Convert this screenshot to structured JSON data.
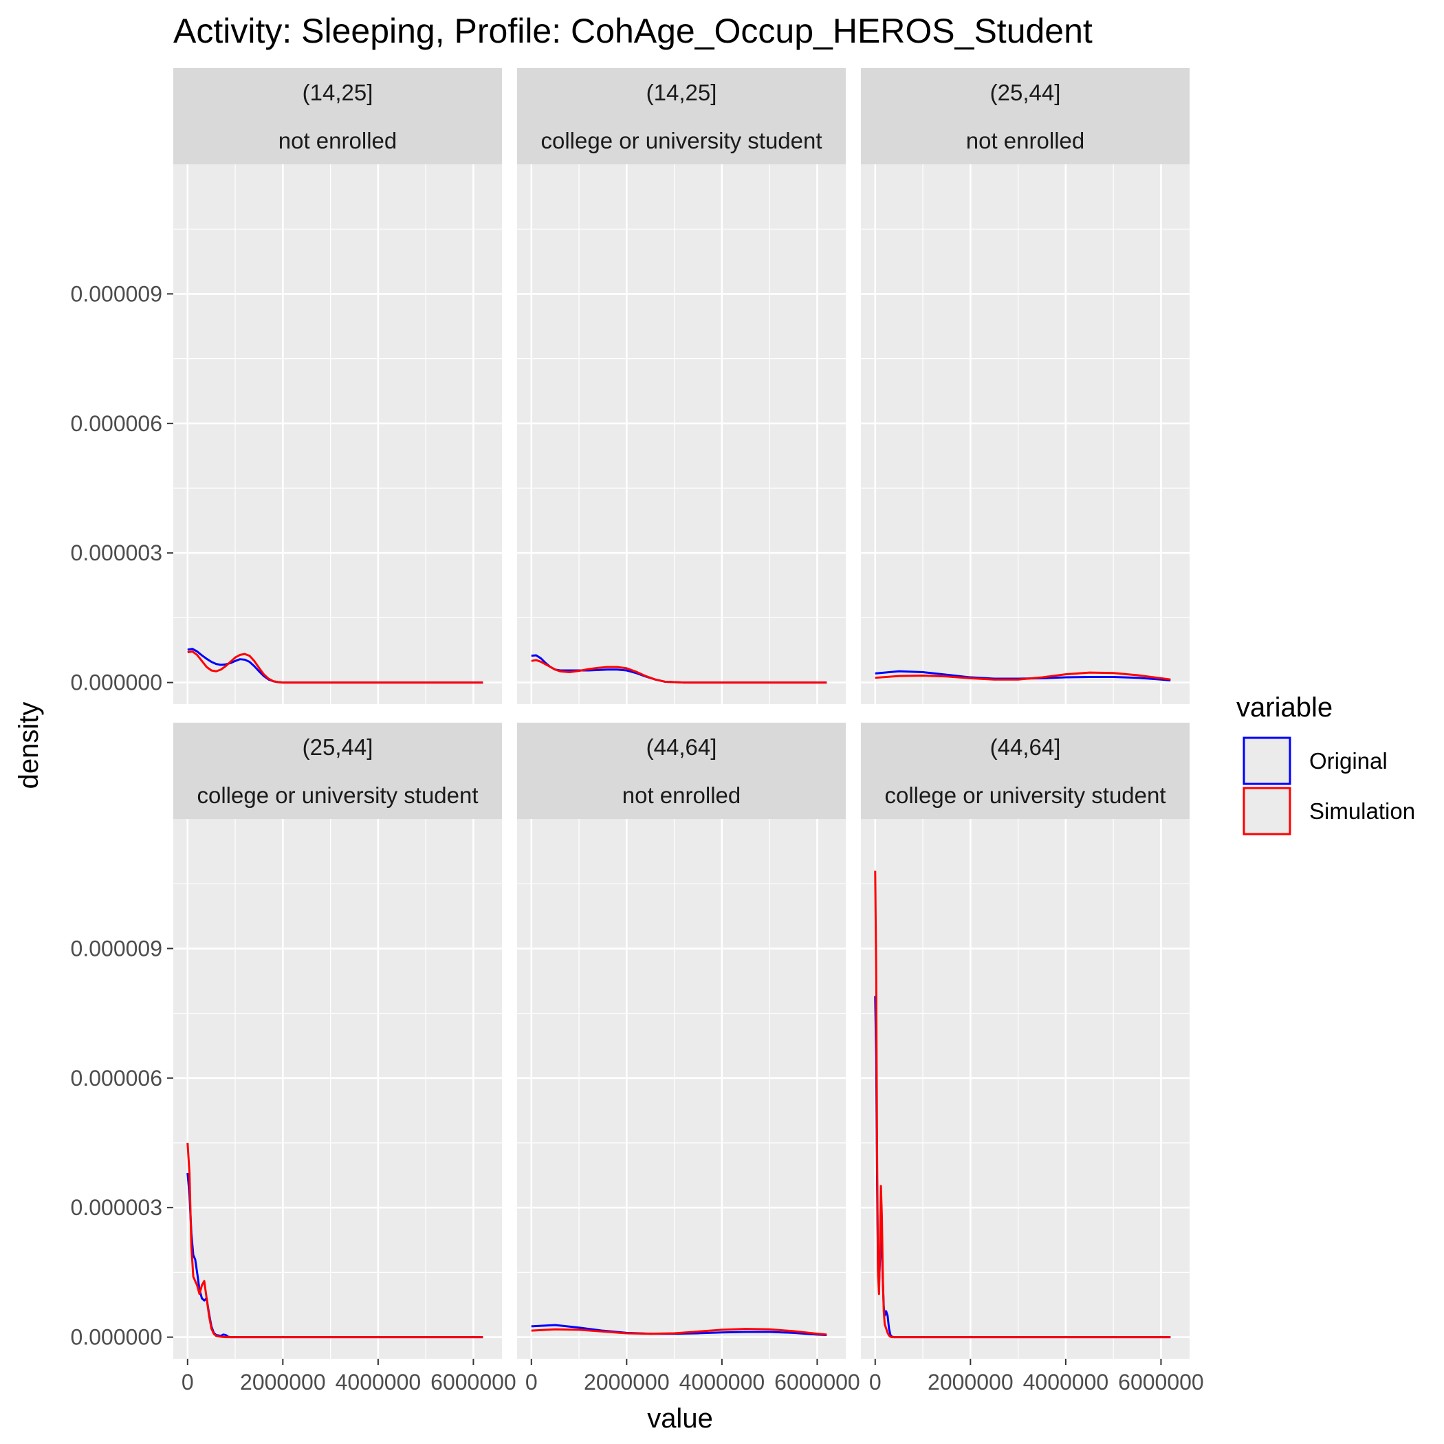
{
  "chart_data": {
    "type": "line",
    "title": "Activity: Sleeping, Profile: CohAge_Occup_HEROS_Student",
    "xlabel": "value",
    "ylabel": "density",
    "xlim": [
      -300000,
      6600000
    ],
    "ylim": [
      -5e-07,
      1.2e-05
    ],
    "x_ticks": [
      0,
      2000000,
      4000000,
      6000000
    ],
    "x_tick_labels": [
      "0",
      "2000000",
      "4000000",
      "6000000"
    ],
    "y_ticks": [
      0,
      3e-06,
      6e-06,
      9e-06
    ],
    "y_tick_labels": [
      "0.000000",
      "0.000003",
      "0.000006",
      "0.000009"
    ],
    "grid": true,
    "legend": {
      "title": "variable",
      "position": "right",
      "entries": [
        "Original",
        "Simulation"
      ]
    },
    "colors": {
      "Original": "#0000ff",
      "Simulation": "#ff0000",
      "panel_bg": "#ebebeb",
      "strip_bg": "#d9d9d9"
    },
    "panels": [
      {
        "strip": [
          "(14,25]",
          "not enrolled"
        ],
        "series": [
          {
            "name": "Original",
            "x": [
              0,
              100000,
              200000,
              300000,
              400000,
              500000,
              600000,
              700000,
              800000,
              900000,
              1000000,
              1100000,
              1200000,
              1300000,
              1400000,
              1500000,
              1600000,
              1700000,
              1800000,
              1900000,
              2000000,
              2200000,
              2500000,
              3000000,
              4000000,
              5000000,
              6000000,
              6200000
            ],
            "y": [
              7.6e-07,
              7.8e-07,
              7.2e-07,
              6.3e-07,
              5.5e-07,
              4.8e-07,
              4.3e-07,
              4.1e-07,
              4.2e-07,
              4.5e-07,
              5e-07,
              5.4e-07,
              5.3e-07,
              4.8e-07,
              3.8e-07,
              2.6e-07,
              1.5e-07,
              7e-08,
              3e-08,
              1e-08,
              0,
              0,
              0,
              0,
              0,
              0,
              0,
              0
            ]
          },
          {
            "name": "Simulation",
            "x": [
              0,
              100000,
              200000,
              300000,
              400000,
              500000,
              600000,
              700000,
              800000,
              900000,
              1000000,
              1100000,
              1200000,
              1300000,
              1400000,
              1500000,
              1600000,
              1700000,
              1800000,
              1900000,
              2000000,
              2200000,
              2500000,
              3000000,
              4000000,
              5000000,
              6000000,
              6200000
            ],
            "y": [
              7e-07,
              7.2e-07,
              6.4e-07,
              5e-07,
              3.6e-07,
              2.8e-07,
              2.6e-07,
              3e-07,
              3.8e-07,
              4.8e-07,
              5.8e-07,
              6.4e-07,
              6.6e-07,
              6.2e-07,
              5e-07,
              3.4e-07,
              1.9e-07,
              9e-08,
              3e-08,
              1e-08,
              0,
              0,
              0,
              0,
              0,
              0,
              0,
              0
            ]
          }
        ]
      },
      {
        "strip": [
          "(14,25]",
          "college or university student"
        ],
        "series": [
          {
            "name": "Original",
            "x": [
              0,
              100000,
              200000,
              300000,
              400000,
              500000,
              600000,
              800000,
              1000000,
              1200000,
              1400000,
              1600000,
              1800000,
              2000000,
              2200000,
              2400000,
              2600000,
              2800000,
              3000000,
              3200000,
              4000000,
              5000000,
              6000000,
              6200000
            ],
            "y": [
              6.2e-07,
              6.3e-07,
              5.6e-07,
              4.5e-07,
              3.6e-07,
              3e-07,
              2.8e-07,
              2.8e-07,
              2.8e-07,
              2.8e-07,
              2.9e-07,
              3e-07,
              3e-07,
              2.8e-07,
              2.2e-07,
              1.4e-07,
              7e-08,
              2e-08,
              1e-08,
              0,
              0,
              0,
              0,
              0
            ]
          },
          {
            "name": "Simulation",
            "x": [
              0,
              100000,
              200000,
              300000,
              400000,
              500000,
              600000,
              800000,
              1000000,
              1200000,
              1400000,
              1600000,
              1800000,
              2000000,
              2200000,
              2400000,
              2600000,
              2800000,
              3000000,
              3200000,
              4000000,
              5000000,
              6000000,
              6200000
            ],
            "y": [
              5e-07,
              5.2e-07,
              4.8e-07,
              4.2e-07,
              3.6e-07,
              3e-07,
              2.6e-07,
              2.4e-07,
              2.7e-07,
              3.1e-07,
              3.4e-07,
              3.6e-07,
              3.6e-07,
              3.3e-07,
              2.5e-07,
              1.5e-07,
              7e-08,
              2e-08,
              1e-08,
              0,
              0,
              0,
              0,
              0
            ]
          }
        ]
      },
      {
        "strip": [
          "(25,44]",
          "not enrolled"
        ],
        "series": [
          {
            "name": "Original",
            "x": [
              0,
              500000,
              1000000,
              1500000,
              2000000,
              2500000,
              3000000,
              3500000,
              4000000,
              4500000,
              5000000,
              5500000,
              6000000,
              6200000
            ],
            "y": [
              2.1e-07,
              2.6e-07,
              2.4e-07,
              1.8e-07,
              1.2e-07,
              9e-08,
              9e-08,
              1e-07,
              1.2e-07,
              1.3e-07,
              1.3e-07,
              1.1e-07,
              7e-08,
              5e-08
            ]
          },
          {
            "name": "Simulation",
            "x": [
              0,
              500000,
              1000000,
              1500000,
              2000000,
              2500000,
              3000000,
              3500000,
              4000000,
              4500000,
              5000000,
              5500000,
              6000000,
              6200000
            ],
            "y": [
              1.1e-07,
              1.5e-07,
              1.6e-07,
              1.4e-07,
              1e-07,
              7e-08,
              7e-08,
              1.2e-07,
              1.9e-07,
              2.3e-07,
              2.2e-07,
              1.7e-07,
              1e-07,
              7e-08
            ]
          }
        ]
      },
      {
        "strip": [
          "(25,44]",
          "college or university student"
        ],
        "series": [
          {
            "name": "Original",
            "x": [
              0,
              40000,
              80000,
              120000,
              160000,
              200000,
              250000,
              300000,
              350000,
              400000,
              450000,
              500000,
              550000,
              600000,
              700000,
              750000,
              800000,
              850000,
              900000,
              1000000,
              2000000,
              4000000,
              6000000,
              6200000
            ],
            "y": [
              3.8e-06,
              3.3e-06,
              2.4e-06,
              1.9e-06,
              1.8e-06,
              1.5e-06,
              1.1e-06,
              9e-07,
              8.5e-07,
              9e-07,
              5.5e-07,
              2.5e-07,
              1e-07,
              5e-08,
              3e-08,
              6e-08,
              5e-08,
              1e-08,
              0,
              0,
              0,
              0,
              0,
              0
            ]
          },
          {
            "name": "Simulation",
            "x": [
              0,
              40000,
              80000,
              120000,
              160000,
              200000,
              250000,
              300000,
              350000,
              400000,
              450000,
              500000,
              550000,
              600000,
              700000,
              800000,
              900000,
              1000000,
              2000000,
              4000000,
              6000000,
              6200000
            ],
            "y": [
              4.5e-06,
              3.8e-06,
              2.1e-06,
              1.4e-06,
              1.3e-06,
              1.2e-06,
              1e-06,
              1.2e-06,
              1.3e-06,
              9e-07,
              5e-07,
              2e-07,
              8e-08,
              3e-08,
              1e-08,
              0,
              0,
              0,
              0,
              0,
              0,
              0
            ]
          }
        ]
      },
      {
        "strip": [
          "(44,64]",
          "not enrolled"
        ],
        "series": [
          {
            "name": "Original",
            "x": [
              0,
              500000,
              1000000,
              1500000,
              2000000,
              2500000,
              3000000,
              3500000,
              4000000,
              4500000,
              5000000,
              5500000,
              6000000,
              6200000
            ],
            "y": [
              2.5e-07,
              2.8e-07,
              2.2e-07,
              1.5e-07,
              1e-07,
              8e-08,
              8e-08,
              9e-08,
              1.1e-07,
              1.2e-07,
              1.2e-07,
              1e-07,
              6e-08,
              5e-08
            ]
          },
          {
            "name": "Simulation",
            "x": [
              0,
              500000,
              1000000,
              1500000,
              2000000,
              2500000,
              3000000,
              3500000,
              4000000,
              4500000,
              5000000,
              5500000,
              6000000,
              6200000
            ],
            "y": [
              1.5e-07,
              1.8e-07,
              1.7e-07,
              1.3e-07,
              9e-08,
              8e-08,
              9e-08,
              1.3e-07,
              1.7e-07,
              1.9e-07,
              1.8e-07,
              1.4e-07,
              8e-08,
              6e-08
            ]
          }
        ]
      },
      {
        "strip": [
          "(44,64]",
          "college or university student"
        ],
        "series": [
          {
            "name": "Original",
            "x": [
              0,
              20000,
              40000,
              60000,
              80000,
              100000,
              120000,
              140000,
              160000,
              180000,
              200000,
              230000,
              260000,
              290000,
              320000,
              350000,
              400000,
              500000,
              1000000,
              2000000,
              4000000,
              6000000,
              6200000
            ],
            "y": [
              7.9e-06,
              6.5e-06,
              3.6e-06,
              1.5e-06,
              1.2e-06,
              1.8e-06,
              2.4e-06,
              2.1e-06,
              1.3e-06,
              7e-07,
              5e-07,
              6e-07,
              5e-07,
              2e-07,
              5e-08,
              1e-08,
              0,
              0,
              0,
              0,
              0,
              0,
              0
            ]
          },
          {
            "name": "Simulation",
            "x": [
              0,
              20000,
              40000,
              60000,
              80000,
              100000,
              120000,
              140000,
              160000,
              180000,
              200000,
              230000,
              260000,
              290000,
              320000,
              350000,
              400000,
              500000,
              1000000,
              2000000,
              4000000,
              6000000,
              6200000
            ],
            "y": [
              1.08e-05,
              8.5e-06,
              4.2e-06,
              1.5e-06,
              1e-06,
              2e-06,
              3.5e-06,
              2.8e-06,
              1.4e-06,
              6e-07,
              3e-07,
              2e-07,
              1e-07,
              4e-08,
              1e-08,
              0,
              0,
              0,
              0,
              0,
              0,
              0,
              0
            ]
          }
        ]
      }
    ]
  }
}
